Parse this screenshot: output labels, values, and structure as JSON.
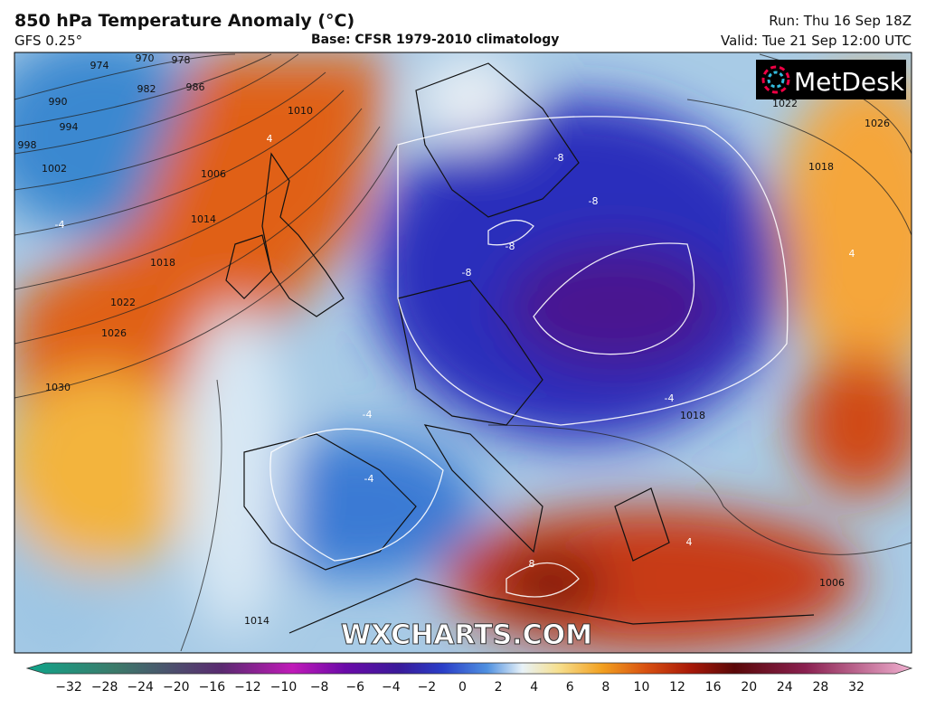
{
  "header": {
    "title": "850 hPa Temperature Anomaly (°C)",
    "model": "GFS 0.25°",
    "base": "Base: CFSR 1979-2010 climatology",
    "run": "Run: Thu 16 Sep 18Z",
    "valid": "Valid: Tue 21 Sep 12:00 UTC"
  },
  "map": {
    "logo": "MetDesk",
    "watermark": "WXCHARTS.COM",
    "contour_labels": [
      "970",
      "974",
      "978",
      "982",
      "986",
      "990",
      "994",
      "998",
      "1002",
      "1006",
      "1010",
      "1014",
      "1018",
      "1022",
      "1026",
      "1030",
      "1022",
      "1026",
      "1018",
      "1018",
      "1006",
      "1014",
      "-8",
      "-8",
      "-8",
      "-8",
      "-4",
      "-4",
      "-4",
      "-4",
      "4",
      "4",
      "4",
      "8"
    ]
  },
  "colorbar": {
    "ticks": [
      "−32",
      "−28",
      "−24",
      "−20",
      "−16",
      "−12",
      "−10",
      "−8",
      "−6",
      "−4",
      "−2",
      "0",
      "2",
      "4",
      "6",
      "8",
      "10",
      "12",
      "16",
      "20",
      "24",
      "28",
      "32"
    ]
  }
}
